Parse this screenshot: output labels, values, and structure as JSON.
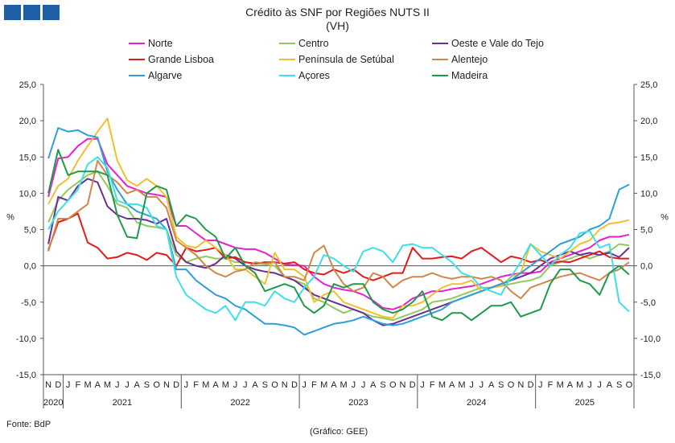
{
  "title": "Crédito às SNF por Regiões NUTS II",
  "subtitle": "(VH)",
  "source": "Fonte: BdP",
  "credit": "(Gráfico: GEE)",
  "chart_data": {
    "type": "line",
    "title": "Crédito às SNF por Regiões NUTS II",
    "subtitle": "(VH)",
    "ylabel": "%",
    "ylim": [
      -15,
      25
    ],
    "yticks": [
      "25,0",
      "20,0",
      "15,0",
      "10,0",
      "5,0",
      "0,0",
      "-5,0",
      "-10,0",
      "-15,0"
    ],
    "ytick_values": [
      25,
      20,
      15,
      10,
      5,
      0,
      -5,
      -10,
      -15
    ],
    "legend_position": "top",
    "grid": false,
    "month_letters": [
      "N",
      "D",
      "J",
      "F",
      "M",
      "A",
      "M",
      "J",
      "J",
      "A",
      "S",
      "O",
      "N",
      "D",
      "J",
      "F",
      "M",
      "A",
      "M",
      "J",
      "J",
      "A",
      "S",
      "O",
      "N",
      "D",
      "J",
      "F",
      "M",
      "A",
      "M",
      "J",
      "J",
      "A",
      "S",
      "O",
      "N",
      "D",
      "J",
      "F",
      "M",
      "A",
      "M",
      "J",
      "J",
      "A",
      "S",
      "O",
      "N",
      "D",
      "J",
      "F",
      "M",
      "A",
      "M",
      "J",
      "J",
      "A",
      "S",
      "O"
    ],
    "years": [
      {
        "label": "2020",
        "start": 0,
        "count": 2
      },
      {
        "label": "2021",
        "start": 2,
        "count": 12
      },
      {
        "label": "2022",
        "start": 14,
        "count": 12
      },
      {
        "label": "2023",
        "start": 26,
        "count": 12
      },
      {
        "label": "2024",
        "start": 38,
        "count": 12
      },
      {
        "label": "2025",
        "start": 50,
        "count": 10
      }
    ],
    "series": [
      {
        "name": "Norte",
        "color": "#e81fd0",
        "values": [
          9.5,
          14.8,
          15.0,
          16.5,
          17.5,
          17.5,
          14.0,
          12.5,
          11.0,
          10.5,
          10.0,
          9.8,
          9.5,
          5.5,
          5.5,
          4.5,
          3.5,
          3.5,
          3.0,
          2.5,
          2.3,
          2.3,
          1.8,
          1.0,
          0.2,
          0.1,
          0.0,
          -1.5,
          -2.5,
          -3.0,
          -3.3,
          -3.5,
          -4.0,
          -4.8,
          -5.8,
          -6.0,
          -5.5,
          -4.5,
          -4.0,
          -3.5,
          -3.5,
          -3.2,
          -3.0,
          -2.8,
          -2.5,
          -2.0,
          -1.5,
          -1.2,
          -1.0,
          -1.0,
          -0.8,
          0.5,
          1.0,
          1.5,
          2.0,
          2.5,
          3.5,
          4.0,
          4.0,
          4.3
        ]
      },
      {
        "name": "Centro",
        "color": "#92c95c",
        "values": [
          6.0,
          9.0,
          10.5,
          11.5,
          12.5,
          13.0,
          11.0,
          8.5,
          8.0,
          6.0,
          5.5,
          5.3,
          5.0,
          1.5,
          0.5,
          1.0,
          1.3,
          1.0,
          1.0,
          0.5,
          0.5,
          0.3,
          0.2,
          0.0,
          -1.5,
          -2.0,
          -2.5,
          -4.5,
          -5.0,
          -5.8,
          -6.5,
          -6.0,
          -6.5,
          -7.0,
          -7.2,
          -7.5,
          -7.0,
          -6.5,
          -6.0,
          -5.0,
          -4.8,
          -4.5,
          -4.0,
          -3.5,
          -3.0,
          -3.0,
          -2.8,
          -2.5,
          -2.2,
          -2.0,
          -1.5,
          0.0,
          0.5,
          1.0,
          1.5,
          1.0,
          1.5,
          2.0,
          3.0,
          2.8
        ]
      },
      {
        "name": "Oeste e Vale do Tejo",
        "color": "#6a2f95",
        "values": [
          3.0,
          9.5,
          9.0,
          11.0,
          12.0,
          11.5,
          8.2,
          7.0,
          6.5,
          6.5,
          6.3,
          5.8,
          6.5,
          2.0,
          0.5,
          0.0,
          -0.3,
          0.3,
          1.5,
          1.0,
          0.0,
          -0.5,
          -0.8,
          -1.0,
          -1.5,
          -2.0,
          -3.0,
          -4.0,
          -4.5,
          -5.0,
          -5.5,
          -6.0,
          -6.5,
          -7.5,
          -8.2,
          -8.0,
          -7.5,
          -7.0,
          -6.5,
          -6.0,
          -5.5,
          -5.0,
          -4.5,
          -4.0,
          -3.5,
          -3.0,
          -2.5,
          -2.0,
          -1.5,
          -1.0,
          0.0,
          1.0,
          1.5,
          2.0,
          1.5,
          1.8,
          1.5,
          1.8,
          1.2,
          2.5
        ]
      },
      {
        "name": "Grande Lisboa",
        "color": "#e41a1c",
        "values": [
          2.2,
          6.0,
          6.5,
          7.2,
          3.2,
          2.5,
          1.0,
          1.2,
          1.8,
          1.5,
          0.8,
          1.8,
          1.5,
          0.0,
          2.5,
          2.0,
          2.2,
          2.5,
          1.0,
          1.2,
          0.5,
          0.3,
          0.5,
          0.5,
          0.3,
          0.5,
          -0.5,
          -1.0,
          -1.2,
          -0.5,
          -1.0,
          -0.5,
          -1.5,
          -2.0,
          -1.5,
          -1.0,
          -1.0,
          2.5,
          1.0,
          1.0,
          1.2,
          1.3,
          1.0,
          2.0,
          2.5,
          1.5,
          0.5,
          1.3,
          1.0,
          0.5,
          0.8,
          0.3,
          0.6,
          0.5,
          1.0,
          1.5,
          2.0,
          1.2,
          1.0,
          1.0
        ]
      },
      {
        "name": "Península de Setúbal",
        "color": "#f2bf2f",
        "values": [
          8.5,
          11.0,
          12.0,
          14.5,
          16.5,
          18.5,
          20.3,
          14.5,
          11.8,
          11.0,
          12.0,
          11.0,
          9.5,
          4.0,
          2.8,
          2.5,
          3.5,
          2.5,
          1.5,
          -0.5,
          -0.5,
          -1.5,
          -2.5,
          1.8,
          -0.5,
          -0.5,
          -1.5,
          -5.0,
          -4.0,
          -3.5,
          -5.0,
          -5.5,
          -6.0,
          -6.5,
          -7.0,
          -7.2,
          -5.5,
          -5.5,
          -5.0,
          -4.0,
          -3.0,
          -2.5,
          -2.5,
          -2.0,
          -3.5,
          -3.0,
          -2.8,
          -1.5,
          -1.0,
          3.0,
          2.0,
          1.5,
          1.0,
          2.0,
          3.0,
          3.5,
          5.0,
          5.8,
          6.0,
          6.3
        ]
      },
      {
        "name": "Alentejo",
        "color": "#d2874a",
        "values": [
          2.0,
          6.5,
          6.5,
          7.5,
          8.5,
          14.5,
          12.5,
          11.5,
          10.0,
          10.5,
          9.5,
          9.5,
          8.0,
          3.5,
          2.5,
          1.5,
          0.0,
          -1.0,
          -1.5,
          -0.8,
          -0.5,
          0.5,
          0.3,
          0.5,
          -1.5,
          -1.5,
          -2.0,
          1.8,
          2.8,
          -0.5,
          -2.5,
          -3.5,
          -3.0,
          -1.0,
          -1.5,
          -3.0,
          -2.0,
          -1.5,
          -1.5,
          -1.0,
          -1.5,
          -1.8,
          -1.5,
          -1.5,
          -1.8,
          -1.5,
          -2.0,
          -3.5,
          -4.5,
          -3.0,
          -2.5,
          -2.0,
          -1.5,
          -1.2,
          -1.0,
          -1.5,
          -2.0,
          -1.0,
          -0.5,
          0.5
        ]
      },
      {
        "name": "Algarve",
        "color": "#2e9fd8",
        "values": [
          14.8,
          19.0,
          18.5,
          18.7,
          18.0,
          17.7,
          13.0,
          10.5,
          8.5,
          7.5,
          7.0,
          6.5,
          5.0,
          -0.5,
          -0.5,
          -2.0,
          -3.0,
          -4.0,
          -4.5,
          -5.5,
          -6.0,
          -7.0,
          -8.0,
          -8.0,
          -8.2,
          -8.5,
          -9.5,
          -9.0,
          -8.5,
          -8.0,
          -7.8,
          -7.5,
          -7.0,
          -7.5,
          -8.0,
          -8.2,
          -8.0,
          -7.5,
          -7.0,
          -6.5,
          -6.0,
          -5.0,
          -4.5,
          -4.0,
          -3.5,
          -3.0,
          -2.5,
          -2.0,
          -1.0,
          0.0,
          1.0,
          2.0,
          3.0,
          3.5,
          4.0,
          5.0,
          5.5,
          6.5,
          10.5,
          11.2
        ]
      },
      {
        "name": "Açores",
        "color": "#3de0e8",
        "values": [
          5.0,
          7.5,
          9.0,
          10.5,
          14.0,
          15.0,
          13.5,
          9.0,
          8.5,
          8.5,
          8.0,
          5.5,
          5.0,
          -1.5,
          -4.0,
          -5.0,
          -6.0,
          -6.5,
          -5.5,
          -7.5,
          -5.0,
          -5.0,
          -5.5,
          -3.5,
          -4.5,
          -5.0,
          -3.0,
          -1.5,
          1.5,
          1.0,
          0.0,
          -0.8,
          2.0,
          2.5,
          2.0,
          0.5,
          2.8,
          3.0,
          2.5,
          2.5,
          1.5,
          0.5,
          -1.0,
          -1.5,
          -3.0,
          -3.5,
          -4.0,
          -1.5,
          0.5,
          3.0,
          1.5,
          0.0,
          1.5,
          2.5,
          4.5,
          4.8,
          2.5,
          3.0,
          -5.0,
          -6.3
        ]
      },
      {
        "name": "Madeira",
        "color": "#1e9a4a",
        "values": [
          10.0,
          16.0,
          12.5,
          13.0,
          13.0,
          13.0,
          12.5,
          7.0,
          4.0,
          3.8,
          10.0,
          11.0,
          10.5,
          5.5,
          7.0,
          6.5,
          5.0,
          4.0,
          1.0,
          2.5,
          0.0,
          -1.0,
          -3.5,
          -3.0,
          -2.5,
          -3.0,
          -5.5,
          -6.5,
          -5.5,
          -2.5,
          -3.0,
          -2.5,
          -2.5,
          -5.0,
          -6.0,
          -6.5,
          -6.0,
          -5.0,
          -3.5,
          -7.0,
          -7.5,
          -6.5,
          -6.5,
          -7.5,
          -6.5,
          -5.5,
          -5.5,
          -5.0,
          -7.0,
          -6.5,
          -6.0,
          -2.5,
          -0.5,
          -0.5,
          -2.0,
          -2.5,
          -4.0,
          -1.0,
          0.0,
          -1.2
        ]
      }
    ]
  }
}
